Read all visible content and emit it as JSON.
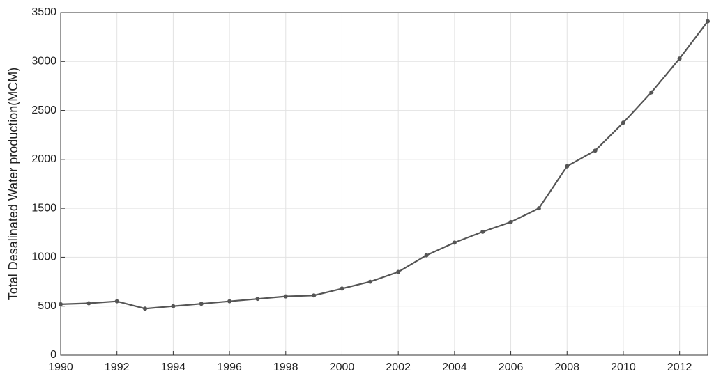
{
  "chart_data": {
    "type": "line",
    "y_label": "Total Desalinated Water production(MCM)",
    "x": [
      1990,
      1991,
      1992,
      1993,
      1994,
      1995,
      1996,
      1997,
      1998,
      1999,
      2000,
      2001,
      2002,
      2003,
      2004,
      2005,
      2006,
      2007,
      2008,
      2009,
      2010,
      2011,
      2012,
      2013
    ],
    "series": [
      {
        "color": "#555555",
        "values": [
          520,
          530,
          550,
          475,
          500,
          525,
          550,
          575,
          600,
          610,
          680,
          750,
          850,
          1020,
          1150,
          1260,
          1360,
          1500,
          1930,
          2090,
          2375,
          2685,
          3030,
          3410
        ]
      }
    ],
    "xlim": [
      1990,
      2013
    ],
    "xticks": [
      1990,
      1992,
      1994,
      1996,
      1998,
      2000,
      2002,
      2004,
      2006,
      2008,
      2010,
      2012
    ],
    "ylim": [
      0,
      3500
    ],
    "yticks": [
      0,
      500,
      1000,
      1500,
      2000,
      2500,
      3000,
      3500
    ],
    "grid": true
  }
}
